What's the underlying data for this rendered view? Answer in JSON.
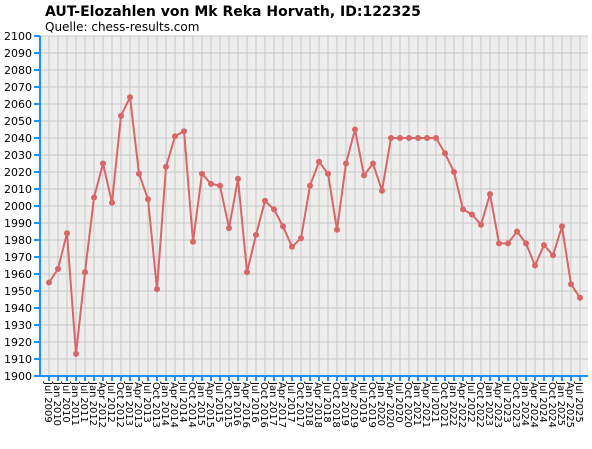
{
  "chart_data": {
    "type": "line",
    "title": "AUT-Elozahlen von Mk Reka Horvath, ID:122325",
    "subtitle": "Quelle: chess-results.com",
    "categories": [
      "Jul 2009",
      "Jan 2010",
      "Jul 2010",
      "Jan 2011",
      "Jul 2011",
      "Jan 2012",
      "Apr 2012",
      "Jul 2012",
      "Oct 2012",
      "Jan 2013",
      "Apr 2013",
      "Jul 2013",
      "Oct 2013",
      "Jan 2014",
      "Apr 2014",
      "Jul 2014",
      "Oct 2014",
      "Jan 2015",
      "Apr 2015",
      "Jul 2015",
      "Oct 2015",
      "Jan 2016",
      "Apr 2016",
      "Jul 2016",
      "Oct 2016",
      "Jan 2017",
      "Apr 2017",
      "Jul 2017",
      "Oct 2017",
      "Jan 2018",
      "Apr 2018",
      "Jul 2018",
      "Oct 2018",
      "Jan 2019",
      "Apr 2019",
      "Jul 2019",
      "Oct 2019",
      "Jan 2020",
      "Apr 2020",
      "Jul 2020",
      "Oct 2020",
      "Jan 2021",
      "Apr 2021",
      "Jul 2021",
      "Oct 2021",
      "Jan 2022",
      "Apr 2022",
      "Jul 2022",
      "Oct 2022",
      "Jan 2023",
      "Apr 2023",
      "Jul 2023",
      "Oct 2023",
      "Jan 2024",
      "Apr 2024",
      "Jul 2024",
      "Oct 2024",
      "Jan 2025",
      "Apr 2025",
      "Jul 2025"
    ],
    "values": [
      1955,
      1963,
      1984,
      1913,
      1961,
      2005,
      2025,
      2002,
      2053,
      2064,
      2019,
      2004,
      1951,
      2023,
      2041,
      2044,
      1979,
      2019,
      2013,
      2012,
      1987,
      2016,
      1961,
      1983,
      2003,
      1998,
      1988,
      1976,
      1981,
      2012,
      2026,
      2019,
      1986,
      2025,
      2045,
      2018,
      2025,
      2009,
      2040,
      2040,
      2040,
      2040,
      2040,
      2040,
      2031,
      2020,
      1998,
      1995,
      1989,
      2007,
      1978,
      1978,
      1985,
      1978,
      1965,
      1977,
      1971,
      1988,
      1954,
      1946
    ],
    "color": "#d96666",
    "ylim": [
      1900,
      2100
    ],
    "yticks": [
      1900,
      1910,
      1920,
      1930,
      1940,
      1950,
      1960,
      1970,
      1980,
      1990,
      2000,
      2010,
      2020,
      2030,
      2040,
      2050,
      2060,
      2070,
      2080,
      2090,
      2100
    ],
    "grid": true
  }
}
